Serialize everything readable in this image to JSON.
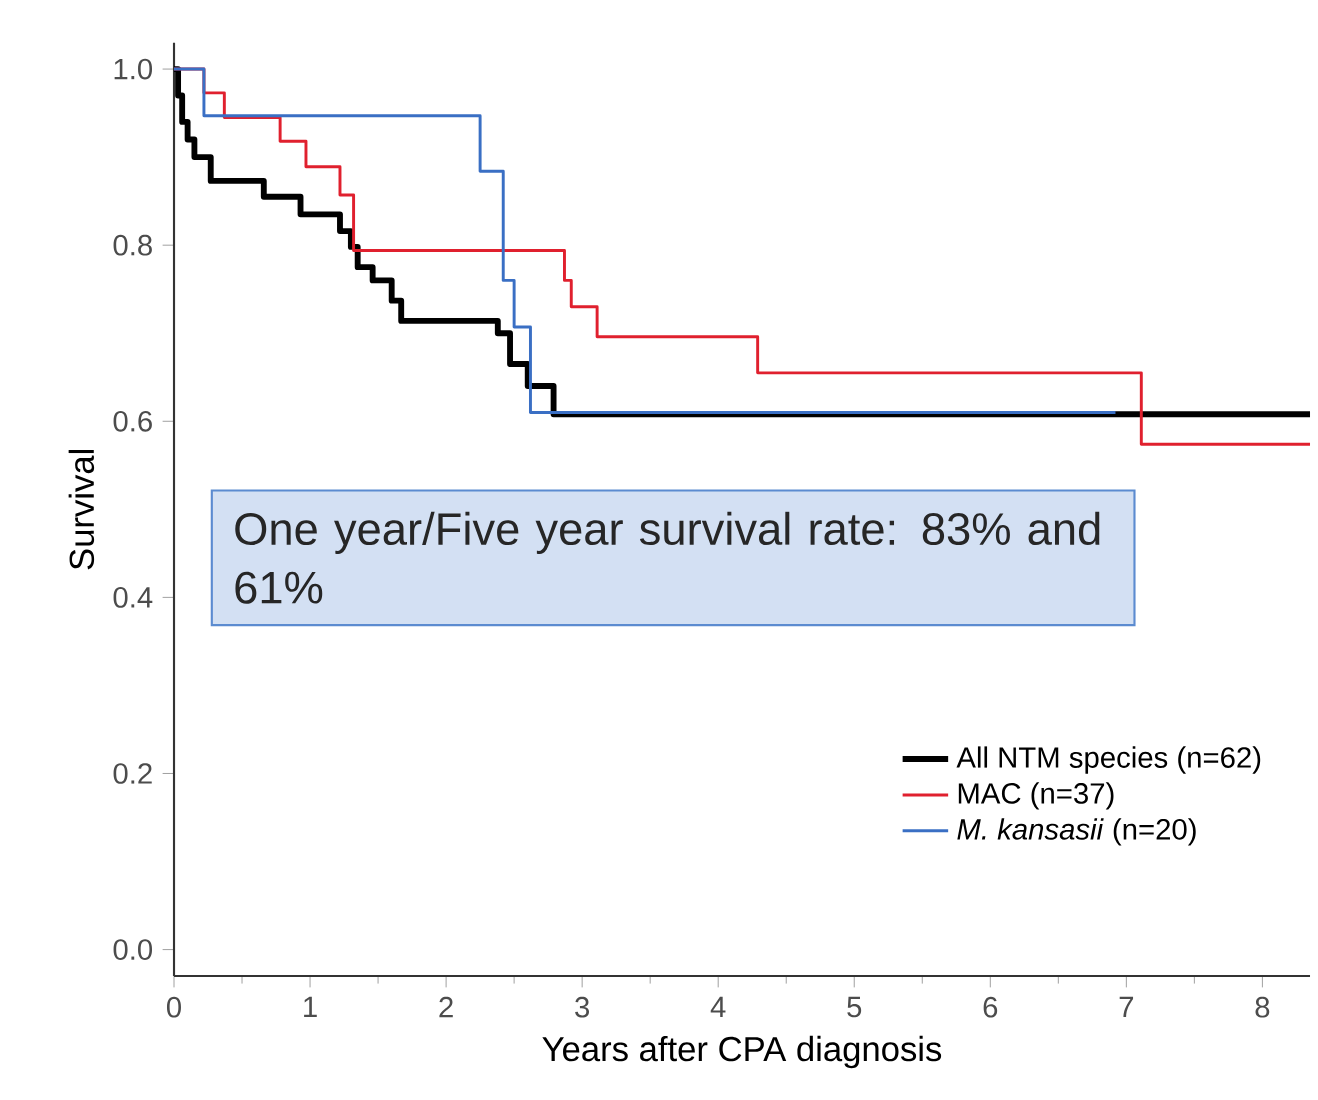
{
  "chart_data": {
    "type": "step",
    "xlabel": "Years after CPA diagnosis",
    "ylabel": "Survival",
    "xlim": [
      0,
      8.35
    ],
    "ylim": [
      -0.03,
      1.03
    ],
    "xticks": [
      0,
      1,
      2,
      3,
      4,
      5,
      6,
      7,
      8
    ],
    "yticks": [
      {
        "value": 0,
        "label": "0.0"
      },
      {
        "value": 0.2,
        "label": "0.2"
      },
      {
        "value": 0.4,
        "label": "0.4"
      },
      {
        "value": 0.6,
        "label": "0.6"
      },
      {
        "value": 0.8,
        "label": "0.8"
      },
      {
        "value": 1,
        "label": "1.0"
      }
    ],
    "grid": false,
    "legend": "bottom right",
    "marker": "none",
    "line_style": "solid",
    "annotations": [
      "One year/Five year  survival rate: 83% and 61%"
    ],
    "series": [
      {
        "name": "All NTM species (n=62)",
        "color": "#000000",
        "x": [
          0,
          0.03,
          0.06,
          0.1,
          0.15,
          0.27,
          0.66,
          0.93,
          1.22,
          1.3,
          1.35,
          1.46,
          1.6,
          1.67,
          2.38,
          2.47,
          2.6,
          2.79,
          8.35
        ],
        "values": [
          1.0,
          0.97,
          0.94,
          0.92,
          0.9,
          0.873,
          0.855,
          0.835,
          0.816,
          0.798,
          0.775,
          0.76,
          0.737,
          0.714,
          0.7,
          0.665,
          0.64,
          0.608,
          0.608
        ]
      },
      {
        "name": "MAC (n=37)",
        "color": "#e0202e",
        "x": [
          0,
          0.22,
          0.37,
          0.78,
          0.97,
          1.22,
          1.32,
          2.87,
          2.92,
          3.11,
          4.29,
          7.11,
          8.35
        ],
        "values": [
          1.0,
          0.973,
          0.945,
          0.918,
          0.889,
          0.857,
          0.794,
          0.76,
          0.73,
          0.696,
          0.655,
          0.574,
          0.574
        ]
      },
      {
        "name": "*M. kansasii* (n=20)",
        "color": "#3a6fc4",
        "x": [
          0,
          0.22,
          2.25,
          2.42,
          2.5,
          2.62,
          6.92
        ],
        "values": [
          1.0,
          0.947,
          0.884,
          0.76,
          0.707,
          0.61,
          0.61
        ]
      }
    ]
  }
}
